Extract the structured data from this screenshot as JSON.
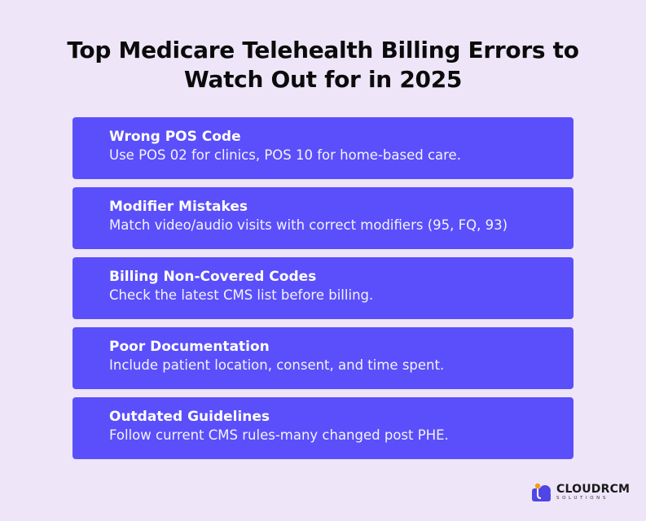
{
  "title": {
    "line1": "Top Medicare Telehealth Billing Errors to",
    "line2": "Watch Out for in 2025"
  },
  "cards": [
    {
      "heading": "Wrong POS Code",
      "desc": "Use POS 02 for clinics, POS 10 for home-based care."
    },
    {
      "heading": "Modifier Mistakes",
      "desc": "Match video/audio visits with correct modifiers (95, FQ, 93)"
    },
    {
      "heading": "Billing Non-Covered Codes",
      "desc": "Check the latest CMS list before billing."
    },
    {
      "heading": "Poor Documentation",
      "desc": "Include patient location, consent, and time spent."
    },
    {
      "heading": "Outdated Guidelines",
      "desc": "Follow current CMS rules-many changed post PHE."
    }
  ],
  "logo": {
    "name": "CLOUDRCM",
    "sub": "SOLUTIONS",
    "icon": "cloud-logo-icon"
  },
  "colors": {
    "background": "#eee6f8",
    "card": "#5a4ffa",
    "title": "#0b0b0b",
    "logo_blue": "#4f46e5",
    "logo_orange": "#f59e0b"
  }
}
